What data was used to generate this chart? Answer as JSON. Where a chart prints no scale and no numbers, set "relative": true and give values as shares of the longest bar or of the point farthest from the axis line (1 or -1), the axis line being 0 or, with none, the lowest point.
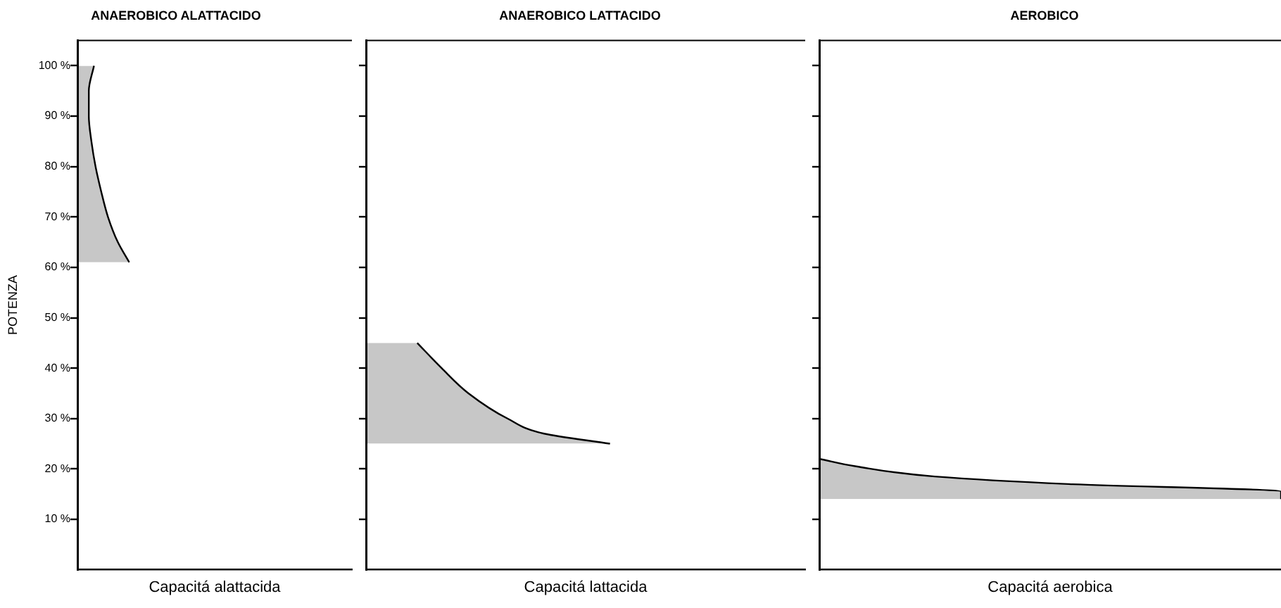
{
  "chart_data": [
    {
      "type": "area",
      "orientation": "horizontal",
      "relative": true,
      "title": "ANAEROBICO ALATTACIDO",
      "xlabel": "Capacitá alattacida",
      "ylabel": "POTENZA",
      "color": "#000000",
      "x": [
        100,
        95,
        90,
        85,
        80,
        75,
        70,
        65,
        61
      ],
      "values": [
        0.32,
        0.22,
        0.22,
        0.27,
        0.35,
        0.46,
        0.59,
        0.78,
        1
      ],
      "ylim": [
        0,
        105
      ],
      "yticks": [
        {
          "value": 10,
          "label": "10 %"
        },
        {
          "value": 20,
          "label": "20 %"
        },
        {
          "value": 30,
          "label": "30 %"
        },
        {
          "value": 40,
          "label": "40 %"
        },
        {
          "value": 50,
          "label": "50 %"
        },
        {
          "value": 60,
          "label": "60 %"
        },
        {
          "value": 70,
          "label": "70 %"
        },
        {
          "value": 80,
          "label": "80 %"
        },
        {
          "value": 90,
          "label": "90 %"
        },
        {
          "value": 100,
          "label": "100 %"
        }
      ],
      "tick_labels": "y",
      "grid": false,
      "legend": false,
      "marker": "none"
    },
    {
      "type": "area",
      "orientation": "horizontal",
      "relative": true,
      "title": "ANAEROBICO LATTACIDO",
      "xlabel": "Capacitá lattacida",
      "color": "#000000",
      "x": [
        45,
        40,
        35,
        30,
        27,
        25
      ],
      "values": [
        0.21,
        0.31,
        0.42,
        0.58,
        0.73,
        1
      ],
      "ylim": [
        0,
        105
      ],
      "yticks": [
        10,
        20,
        30,
        40,
        50,
        60,
        70,
        80,
        90,
        100
      ],
      "tick_labels": false,
      "grid": false,
      "legend": false,
      "marker": "none"
    },
    {
      "type": "area",
      "orientation": "horizontal",
      "relative": true,
      "title": "AEROBICO",
      "xlabel": "Capacitá aerobica",
      "color": "#000000",
      "x": [
        22,
        20.5,
        18.5,
        17,
        15.5,
        14
      ],
      "values": [
        0,
        0.08,
        0.25,
        0.54,
        1,
        1
      ],
      "ylim": [
        0,
        105
      ],
      "yticks": [
        10,
        20,
        30,
        40,
        50,
        60,
        70,
        80,
        90,
        100
      ],
      "tick_labels": false,
      "grid": false,
      "legend": false,
      "marker": "none"
    }
  ]
}
